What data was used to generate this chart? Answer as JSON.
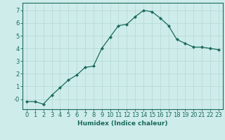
{
  "x": [
    0,
    1,
    2,
    3,
    4,
    5,
    6,
    7,
    8,
    9,
    10,
    11,
    12,
    13,
    14,
    15,
    16,
    17,
    18,
    19,
    20,
    21,
    22,
    23
  ],
  "y": [
    -0.2,
    -0.2,
    -0.4,
    0.3,
    0.9,
    1.5,
    1.9,
    2.5,
    2.6,
    4.0,
    4.9,
    5.8,
    5.9,
    6.5,
    7.0,
    6.9,
    6.4,
    5.8,
    4.7,
    4.4,
    4.1,
    4.1,
    4.0,
    3.9
  ],
  "line_color": "#1a6b5a",
  "marker": "D",
  "marker_size": 2.0,
  "bg_color": "#ceecea",
  "grid_color": "#b8dbd8",
  "xlabel": "Humidex (Indice chaleur)",
  "xlim": [
    -0.5,
    23.5
  ],
  "ylim": [
    -0.8,
    7.6
  ],
  "yticks": [
    0,
    1,
    2,
    3,
    4,
    5,
    6,
    7
  ],
  "ytick_labels": [
    "-0",
    "1",
    "2",
    "3",
    "4",
    "5",
    "6",
    "7"
  ],
  "xticks": [
    0,
    1,
    2,
    3,
    4,
    5,
    6,
    7,
    8,
    9,
    10,
    11,
    12,
    13,
    14,
    15,
    16,
    17,
    18,
    19,
    20,
    21,
    22,
    23
  ],
  "label_fontsize": 6.5,
  "tick_fontsize": 6.0
}
